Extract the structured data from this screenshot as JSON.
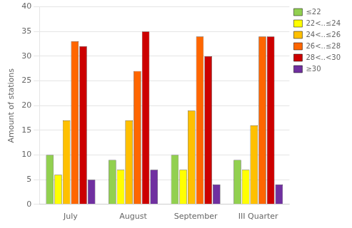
{
  "chart_data": {
    "type": "bar",
    "categories": [
      "July",
      "August",
      "September",
      "III Quarter"
    ],
    "series": [
      {
        "name": "≤22",
        "values": [
          10,
          9,
          10,
          9
        ],
        "color": "#92d050"
      },
      {
        "name": "22<..≤24",
        "values": [
          6,
          7,
          7,
          7
        ],
        "color": "#ffff00"
      },
      {
        "name": "24<..≤26",
        "values": [
          17,
          17,
          19,
          16
        ],
        "color": "#ffc000"
      },
      {
        "name": "26<..≤28",
        "values": [
          33,
          27,
          34,
          34
        ],
        "color": "#ff6600"
      },
      {
        "name": "28<..<30",
        "values": [
          32,
          35,
          30,
          34
        ],
        "color": "#cc0000"
      },
      {
        "name": "≥30",
        "values": [
          5,
          7,
          4,
          4
        ],
        "color": "#7030a0"
      }
    ],
    "ylabel": "Amount of stations",
    "ylim": [
      0,
      40
    ],
    "yticks": [
      0,
      5,
      10,
      15,
      20,
      25,
      30,
      35,
      40
    ],
    "grid": true,
    "legend": "upper right"
  }
}
